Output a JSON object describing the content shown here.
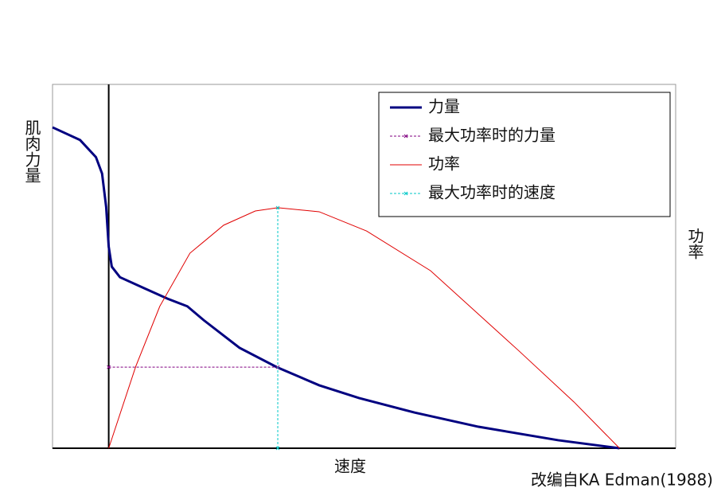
{
  "chart_data": {
    "type": "line",
    "xlabel": "速度",
    "ylabel": "肌肉力量",
    "y2label": "功率",
    "note": "改编自KA Edman(1988)",
    "xlim": [
      -11,
      111
    ],
    "ylim": [
      0,
      100
    ],
    "y2lim": [
      0,
      100
    ],
    "legend": "upper right",
    "series": [
      {
        "name": "力量",
        "color": "#000080",
        "style": "solid",
        "width": 3,
        "x": [
          -11,
          -5.6,
          -2.5,
          -1.3,
          -0.5,
          0,
          0.6,
          2.2,
          6.9,
          11.5,
          15.4,
          18.6,
          25.6,
          32.9,
          41.2,
          49,
          59.9,
          72.4,
          88,
          100
        ],
        "values": [
          88.2,
          84.7,
          80,
          75.5,
          66.3,
          55.4,
          49.9,
          47,
          44,
          41.1,
          39,
          35.2,
          27.6,
          22.3,
          17.3,
          13.8,
          9.8,
          5.9,
          2.2,
          0
        ]
      },
      {
        "name": "最大功率时的力量",
        "color": "#800080",
        "style": "dashed",
        "width": 1,
        "x": [
          0,
          33.1
        ],
        "values": [
          22.3,
          22.3
        ]
      },
      {
        "name": "功率",
        "color": "#e00000",
        "style": "solid",
        "width": 1,
        "axis": "y2",
        "x": [
          0,
          5.3,
          10,
          15.9,
          22.5,
          28.7,
          33.1,
          41.2,
          50.5,
          63,
          80.2,
          91.1,
          100
        ],
        "values": [
          0,
          22.5,
          39,
          53.6,
          61.3,
          65.2,
          66.1,
          65,
          59.7,
          48.8,
          26.9,
          12.7,
          0
        ]
      },
      {
        "name": "最大功率时的速度",
        "color": "#00c8c8",
        "style": "dashed",
        "width": 1,
        "axis": "y2",
        "x": [
          33.1,
          33.1
        ],
        "values": [
          0,
          66.1
        ]
      }
    ]
  }
}
